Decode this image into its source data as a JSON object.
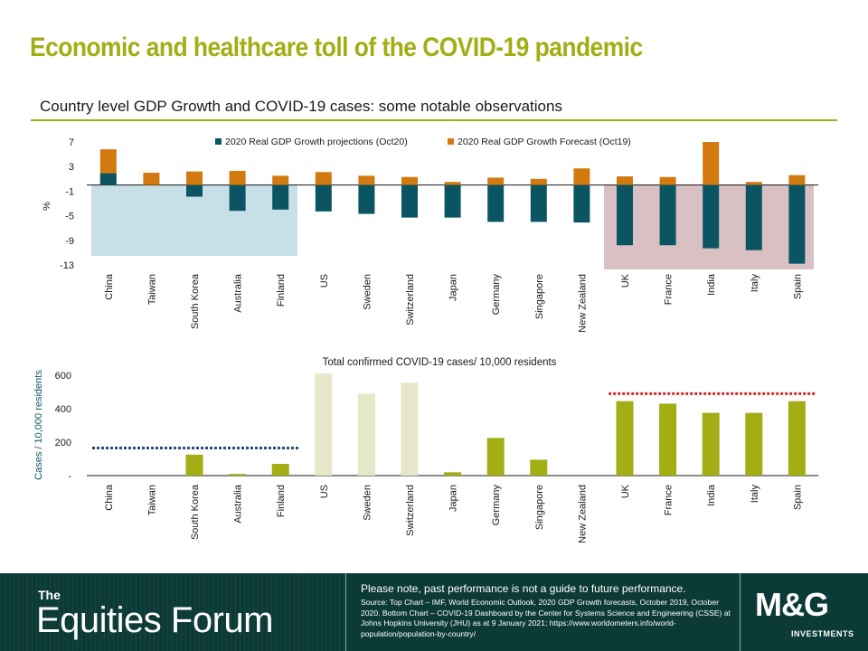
{
  "page": {
    "title": "Economic and healthcare toll of the COVID-19 pandemic",
    "subtitle": "Country level GDP Growth and COVID-19 cases: some notable observations"
  },
  "colors": {
    "accent": "#a3ad14",
    "gdp_oct20": "#0b5563",
    "gdp_oct19": "#d27a0f",
    "cases_highlight": "#a3ad14",
    "cases_muted": "#e6e6c8",
    "left_box": "#c7dfe6",
    "right_box": "#d9c0c3",
    "dotted_blue": "#2c4a7a",
    "dotted_red": "#d22b2b",
    "footer_bg": "#0c3a36"
  },
  "chart_data": [
    {
      "type": "bar",
      "categories": [
        "China",
        "Taiwan",
        "South Korea",
        "Australia",
        "Finland",
        "US",
        "Sweden",
        "Switzerland",
        "Japan",
        "Germany",
        "Singapore",
        "New Zealand",
        "UK",
        "France",
        "India",
        "Italy",
        "Spain"
      ],
      "series": [
        {
          "name": "2020 Real GDP Growth projections (Oct20)",
          "values": [
            1.9,
            0.0,
            -1.9,
            -4.2,
            -4.0,
            -4.3,
            -4.7,
            -5.3,
            -5.3,
            -6.0,
            -6.0,
            -6.1,
            -9.8,
            -9.8,
            -10.3,
            -10.6,
            -12.8
          ]
        },
        {
          "name": "2020 Real GDP Growth Forecast (Oct19)",
          "values": [
            5.8,
            2.0,
            2.2,
            2.3,
            1.5,
            2.1,
            1.5,
            1.3,
            0.5,
            1.2,
            1.0,
            2.7,
            1.4,
            1.3,
            7.0,
            0.5,
            1.6
          ]
        }
      ],
      "ylabel": "%",
      "yticks": [
        "7",
        "3",
        "-1",
        "-5",
        "-9",
        "-13"
      ],
      "ylim": [
        -13,
        7
      ],
      "legend_position": "top"
    },
    {
      "type": "bar",
      "title": "Total confirmed COVID-19 cases/ 10,000 residents",
      "categories": [
        "China",
        "Taiwan",
        "South Korea",
        "Australia",
        "Finland",
        "US",
        "Sweden",
        "Switzerland",
        "Japan",
        "Germany",
        "Singapore",
        "New Zealand",
        "UK",
        "France",
        "India",
        "Italy",
        "Spain"
      ],
      "values": [
        0,
        0,
        125,
        10,
        70,
        610,
        490,
        555,
        20,
        225,
        95,
        0,
        445,
        430,
        375,
        375,
        445
      ],
      "highlight": [
        true,
        true,
        true,
        true,
        true,
        false,
        false,
        false,
        true,
        true,
        true,
        true,
        true,
        true,
        true,
        true,
        true
      ],
      "ylabel": "Cases / 10,000 residents",
      "yticks": [
        "600",
        "400",
        "200",
        "-"
      ],
      "ylim": [
        0,
        600
      ],
      "reference_lines": [
        {
          "color": "blue",
          "value": 165,
          "from": "China",
          "to": "Finland"
        },
        {
          "color": "red",
          "value": 490,
          "from": "UK",
          "to": "Spain"
        }
      ]
    }
  ],
  "footer": {
    "brand_small": "The",
    "brand_big": "Equities Forum",
    "disclaimer": "Please note, past performance is not a guide to future performance.",
    "source": "Source: Top Chart – IMF, World Economic Outlook, 2020 GDP Growth forecasts, October 2019, October 2020. Bottom Chart – COVID-19 Dashboard by the Center for Systems Science and Engineering (CSSE) at Johns Hopkins University (JHU) as at 9 January 2021; https://www.worldometers.info/world-population/population-by-country/",
    "logo_main": "M&G",
    "logo_sub": "INVESTMENTS"
  }
}
